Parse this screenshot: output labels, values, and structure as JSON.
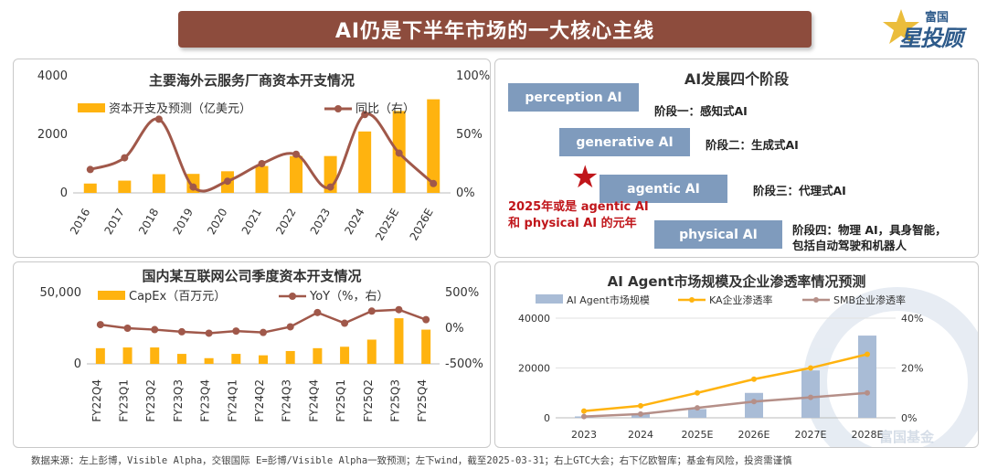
{
  "header": {
    "title": "AI仍是下半年市场的一大核心主线",
    "logo_top": "富国",
    "logo_main": "投顾",
    "logo_glyph": "星"
  },
  "stages": {
    "title": "AI发展四个阶段",
    "items": [
      {
        "box": "perception AI",
        "label": "阶段一：感知式AI"
      },
      {
        "box": "generative AI",
        "label": "阶段二：生成式AI"
      },
      {
        "box": "agentic AI",
        "label": "阶段三：代理式AI"
      },
      {
        "box": "physical AI",
        "label": "阶段四：物理 AI，具身智能，",
        "label2": "包括自动驾驶和机器人"
      }
    ],
    "note_line1": "2025年或是 agentic AI",
    "note_line2": "和 physical AI 的元年",
    "accent_box": "#7f9bbd",
    "accent_red": "#c0161b"
  },
  "watermark": "富国基金",
  "footer": "数据来源：左上彭博，Visible Alpha，交银国际 E=彭博/Visible Alpha一致预测；左下wind，截至2025-03-31；右上GTC大会；右下亿欧智库；基金有风险，投资需谨慎",
  "chart_data": [
    {
      "type": "bar+line",
      "title": "主要海外云服务厂商资本开支情况",
      "categories": [
        "2016",
        "2017",
        "2018",
        "2019",
        "2020",
        "2021",
        "2022",
        "2023",
        "2024",
        "2025E",
        "2026E"
      ],
      "series": [
        {
          "name": "资本开支及预测（亿美元）",
          "kind": "bar",
          "axis": "left",
          "color": "#ffb30f",
          "values": [
            320,
            420,
            640,
            650,
            740,
            920,
            1260,
            1260,
            2100,
            2800,
            3200
          ]
        },
        {
          "name": "同比（右）",
          "kind": "line",
          "axis": "right",
          "color": "#a0584a",
          "values": [
            20,
            30,
            63,
            5,
            10,
            25,
            33,
            5,
            67,
            34,
            8
          ]
        }
      ],
      "ylim_left": [
        0,
        4000
      ],
      "yticks_left": [
        "0",
        "2000",
        "4000"
      ],
      "ylim_right": [
        0,
        100
      ],
      "yticks_right": [
        "0%",
        "50%",
        "100%"
      ]
    },
    {
      "type": "bar+line",
      "title": "国内某互联网公司季度资本开支情况",
      "categories": [
        "FY22Q4",
        "FY23Q1",
        "FY23Q2",
        "FY23Q3",
        "FY23Q4",
        "FY24Q1",
        "FY24Q2",
        "FY24Q3",
        "FY24Q4",
        "FY25Q1",
        "FY25Q2",
        "FY25Q3",
        "FY25Q4"
      ],
      "series": [
        {
          "name": "CapEx（百万元）",
          "kind": "bar",
          "axis": "left",
          "color": "#ffb30f",
          "values": [
            11000,
            11500,
            11500,
            7000,
            4000,
            7000,
            6000,
            9000,
            11000,
            12000,
            17000,
            32000,
            24000
          ]
        },
        {
          "name": "YoY（%，右）",
          "kind": "line",
          "axis": "right",
          "color": "#a0584a",
          "values": [
            50,
            0,
            -20,
            -50,
            -70,
            -40,
            -60,
            20,
            220,
            70,
            240,
            260,
            120
          ]
        }
      ],
      "ylim_left": [
        0,
        50000
      ],
      "yticks_left": [
        "0",
        "50,000"
      ],
      "ylim_right": [
        -500,
        500
      ],
      "yticks_right": [
        "-500%",
        "0%",
        "500%"
      ]
    },
    {
      "type": "bar+line",
      "title": "AI Agent市场规模及企业渗透率情况预测",
      "categories": [
        "2023",
        "2024",
        "2025E",
        "2026E",
        "2027E",
        "2028E"
      ],
      "series": [
        {
          "name": "AI Agent市场规模",
          "kind": "bar",
          "axis": "left",
          "color": "#a9bcd6",
          "values": [
            550,
            1500,
            3500,
            10000,
            19000,
            33000
          ]
        },
        {
          "name": "KA企业渗透率",
          "kind": "line",
          "axis": "right",
          "color": "#ffb30f",
          "values": [
            2.7,
            4.8,
            10,
            15.5,
            20,
            25.5
          ]
        },
        {
          "name": "SMB企业渗透率",
          "kind": "line",
          "axis": "right",
          "color": "#b58f88",
          "values": [
            0.5,
            1.5,
            4,
            6.5,
            8.2,
            10
          ]
        }
      ],
      "ylim_left": [
        0,
        40000
      ],
      "yticks_left": [
        "0",
        "20000",
        "40000"
      ],
      "ylim_right": [
        0,
        40
      ],
      "yticks_right": [
        "0%",
        "20%",
        "40%"
      ]
    }
  ]
}
